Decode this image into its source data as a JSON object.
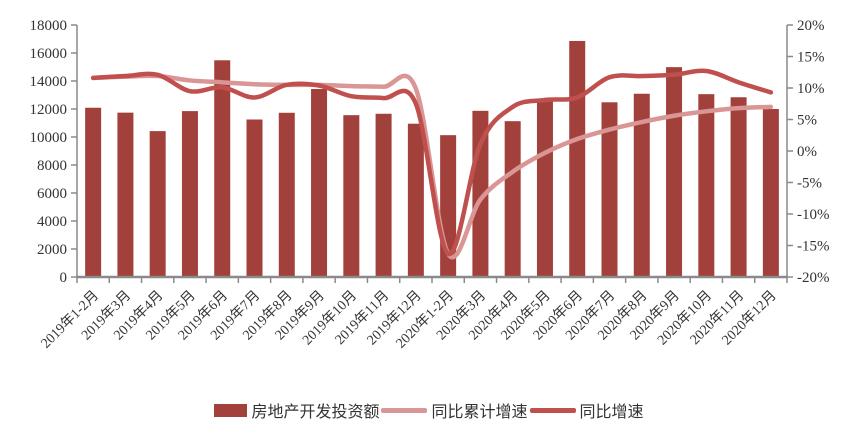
{
  "chart_data": {
    "type": "combo",
    "title": "",
    "xlabel": "",
    "ylabel_left": "",
    "ylabel_right": "",
    "grid": false,
    "legend_position": "bottom",
    "categories": [
      "2019年1-2月",
      "2019年3月",
      "2019年4月",
      "2019年5月",
      "2019年6月",
      "2019年7月",
      "2019年8月",
      "2019年9月",
      "2019年10月",
      "2019年11月",
      "2019年12月",
      "2020年1-2月",
      "2020年3月",
      "2020年4月",
      "2020年5月",
      "2020年6月",
      "2020年7月",
      "2020年8月",
      "2020年9月",
      "2020年10月",
      "2020年11月",
      "2020年12月"
    ],
    "series": [
      {
        "name": "房地产开发投资额",
        "slug": "investment-bars",
        "type": "bar",
        "axis": "left",
        "color": "#A2413C",
        "values": [
          12090,
          11740,
          10420,
          11850,
          15480,
          11250,
          11730,
          13430,
          11560,
          11660,
          10950,
          10130,
          11870,
          11130,
          12610,
          16860,
          12480,
          13090,
          14990,
          13060,
          12840,
          12000
        ]
      },
      {
        "name": "同比累计增速",
        "slug": "cumulative-yoy-growth-line",
        "type": "line",
        "axis": "right",
        "color": "#D99694",
        "values": [
          11.6,
          11.8,
          11.9,
          11.2,
          10.9,
          10.6,
          10.5,
          10.5,
          10.3,
          10.2,
          9.9,
          -16.3,
          -7.7,
          -3.3,
          -0.3,
          1.9,
          3.4,
          4.6,
          5.6,
          6.3,
          6.8,
          7.0
        ]
      },
      {
        "name": "同比增速",
        "slug": "monthly-yoy-growth-line",
        "type": "line",
        "axis": "right",
        "color": "#C0504D",
        "values": [
          11.6,
          11.9,
          12.1,
          9.5,
          10.1,
          8.5,
          10.5,
          10.4,
          8.7,
          8.4,
          7.5,
          -16.3,
          1.1,
          7.0,
          8.1,
          8.5,
          11.7,
          11.9,
          12.1,
          12.7,
          10.9,
          9.3
        ]
      }
    ],
    "left_axis": {
      "min": 0,
      "max": 18000,
      "step": 2000,
      "tick_labels": [
        "0",
        "2000",
        "4000",
        "6000",
        "8000",
        "10000",
        "12000",
        "14000",
        "16000",
        "18000"
      ]
    },
    "right_axis": {
      "min": -20,
      "max": 20,
      "step": 5,
      "tick_labels": [
        "-20%",
        "-15%",
        "-10%",
        "-5%",
        "0%",
        "5%",
        "10%",
        "15%",
        "20%"
      ]
    }
  },
  "colors": {
    "axis": "#8a8a8a",
    "text": "#333333",
    "background": "#ffffff"
  }
}
